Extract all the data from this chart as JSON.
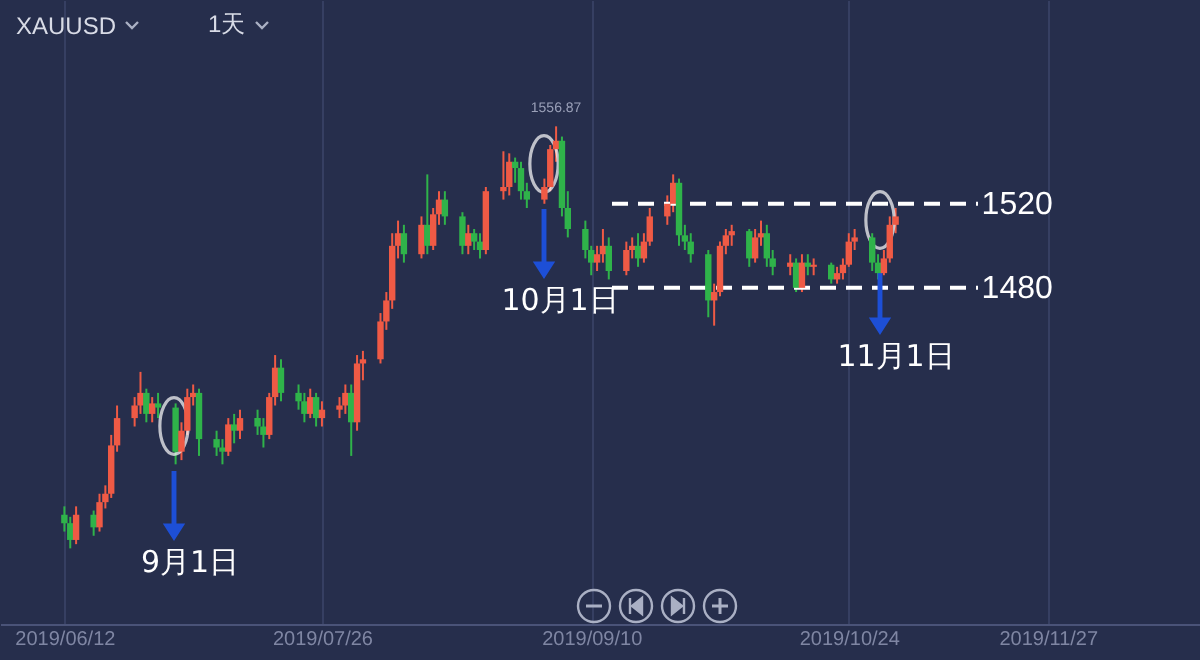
{
  "chart_data": {
    "type": "candlestick",
    "annotations": [
      "XAUUSD",
      "1天",
      "9月1日",
      "10月1日",
      "11月1日",
      {
        "text": "1556.87",
        "x": "2019-09-04",
        "y": 1556.87
      }
    ],
    "xlim": [
      "2019-06-01",
      "2019-12-23"
    ],
    "xticks": [
      {
        "value": "2019-06-12",
        "label": "2019/06/12"
      },
      {
        "value": "2019-07-26",
        "label": "2019/07/26"
      },
      {
        "value": "2019-09-10",
        "label": "2019/09/10"
      },
      {
        "value": "2019-10-24",
        "label": "2019/10/24"
      },
      {
        "value": "2019-11-27",
        "label": "2019/11/27"
      }
    ],
    "ylim": [
      1320,
      1617
    ],
    "tick_labels": "x",
    "grid": "x",
    "ref_lines": [
      {
        "axis": "y",
        "value": 1520,
        "label": "1520",
        "color": "#ffffff",
        "line_style": "dashed"
      },
      {
        "axis": "y",
        "value": 1480,
        "label": "1480",
        "color": "#ffffff",
        "line_style": "dashed"
      }
    ],
    "x": [
      "2019-06-12",
      "2019-06-13",
      "2019-06-14",
      "2019-06-17",
      "2019-06-18",
      "2019-06-19",
      "2019-06-20",
      "2019-06-21",
      "2019-06-24",
      "2019-06-25",
      "2019-06-26",
      "2019-06-27",
      "2019-06-28",
      "2019-07-01",
      "2019-07-02",
      "2019-07-03",
      "2019-07-04",
      "2019-07-05",
      "2019-07-08",
      "2019-07-09",
      "2019-07-10",
      "2019-07-11",
      "2019-07-12",
      "2019-07-15",
      "2019-07-16",
      "2019-07-17",
      "2019-07-18",
      "2019-07-19",
      "2019-07-22",
      "2019-07-23",
      "2019-07-24",
      "2019-07-25",
      "2019-07-26",
      "2019-07-29",
      "2019-07-30",
      "2019-07-31",
      "2019-08-01",
      "2019-08-02",
      "2019-08-05",
      "2019-08-06",
      "2019-08-07",
      "2019-08-08",
      "2019-08-09",
      "2019-08-12",
      "2019-08-13",
      "2019-08-14",
      "2019-08-15",
      "2019-08-16",
      "2019-08-19",
      "2019-08-20",
      "2019-08-21",
      "2019-08-22",
      "2019-08-23",
      "2019-08-26",
      "2019-08-27",
      "2019-08-28",
      "2019-08-29",
      "2019-08-30",
      "2019-09-02",
      "2019-09-03",
      "2019-09-04",
      "2019-09-05",
      "2019-09-06",
      "2019-09-09",
      "2019-09-10",
      "2019-09-11",
      "2019-09-12",
      "2019-09-13",
      "2019-09-16",
      "2019-09-17",
      "2019-09-18",
      "2019-09-19",
      "2019-09-20",
      "2019-09-23",
      "2019-09-24",
      "2019-09-25",
      "2019-09-26",
      "2019-09-27",
      "2019-09-30",
      "2019-10-01",
      "2019-10-02",
      "2019-10-03",
      "2019-10-04",
      "2019-10-07",
      "2019-10-08",
      "2019-10-09",
      "2019-10-10",
      "2019-10-11",
      "2019-10-14",
      "2019-10-15",
      "2019-10-16",
      "2019-10-17",
      "2019-10-18",
      "2019-10-21",
      "2019-10-22",
      "2019-10-23",
      "2019-10-24",
      "2019-10-25",
      "2019-10-28",
      "2019-10-29",
      "2019-10-30",
      "2019-10-31",
      "2019-11-01"
    ],
    "ohlc": [
      [
        1372,
        1376,
        1364,
        1368
      ],
      [
        1368,
        1371,
        1356,
        1360
      ],
      [
        1360,
        1376,
        1358,
        1372
      ],
      [
        1372,
        1374,
        1362,
        1366
      ],
      [
        1366,
        1382,
        1364,
        1378
      ],
      [
        1378,
        1386,
        1375,
        1382
      ],
      [
        1382,
        1410,
        1380,
        1405
      ],
      [
        1405,
        1424,
        1402,
        1418
      ],
      [
        1418,
        1428,
        1414,
        1424
      ],
      [
        1424,
        1440,
        1420,
        1430
      ],
      [
        1430,
        1432,
        1416,
        1420
      ],
      [
        1420,
        1428,
        1416,
        1425
      ],
      [
        1425,
        1430,
        1418,
        1423
      ],
      [
        1423,
        1425,
        1396,
        1402
      ],
      [
        1402,
        1416,
        1398,
        1412
      ],
      [
        1412,
        1432,
        1410,
        1428
      ],
      [
        1428,
        1434,
        1424,
        1430
      ],
      [
        1430,
        1432,
        1400,
        1408
      ],
      [
        1408,
        1412,
        1400,
        1404
      ],
      [
        1404,
        1408,
        1396,
        1402
      ],
      [
        1402,
        1418,
        1400,
        1415
      ],
      [
        1415,
        1420,
        1406,
        1412
      ],
      [
        1412,
        1422,
        1408,
        1418
      ],
      [
        1418,
        1422,
        1410,
        1414
      ],
      [
        1414,
        1418,
        1404,
        1410
      ],
      [
        1410,
        1430,
        1408,
        1428
      ],
      [
        1428,
        1448,
        1424,
        1442
      ],
      [
        1442,
        1446,
        1426,
        1430
      ],
      [
        1430,
        1434,
        1422,
        1426
      ],
      [
        1426,
        1430,
        1416,
        1420
      ],
      [
        1420,
        1432,
        1418,
        1428
      ],
      [
        1428,
        1430,
        1414,
        1418
      ],
      [
        1418,
        1426,
        1414,
        1422
      ],
      [
        1422,
        1428,
        1418,
        1424
      ],
      [
        1424,
        1434,
        1420,
        1430
      ],
      [
        1430,
        1434,
        1400,
        1416
      ],
      [
        1416,
        1448,
        1412,
        1444
      ],
      [
        1444,
        1450,
        1436,
        1446
      ],
      [
        1446,
        1468,
        1444,
        1464
      ],
      [
        1464,
        1478,
        1460,
        1474
      ],
      [
        1474,
        1506,
        1470,
        1500
      ],
      [
        1500,
        1512,
        1494,
        1506
      ],
      [
        1506,
        1510,
        1492,
        1496
      ],
      [
        1496,
        1514,
        1494,
        1510
      ],
      [
        1510,
        1534,
        1496,
        1500
      ],
      [
        1500,
        1518,
        1498,
        1515
      ],
      [
        1515,
        1526,
        1510,
        1522
      ],
      [
        1522,
        1526,
        1510,
        1514
      ],
      [
        1514,
        1516,
        1496,
        1500
      ],
      [
        1500,
        1510,
        1496,
        1506
      ],
      [
        1506,
        1508,
        1498,
        1502
      ],
      [
        1502,
        1506,
        1494,
        1498
      ],
      [
        1498,
        1528,
        1496,
        1526
      ],
      [
        1526,
        1545,
        1522,
        1528
      ],
      [
        1528,
        1544,
        1524,
        1540
      ],
      [
        1540,
        1542,
        1530,
        1537
      ],
      [
        1537,
        1540,
        1522,
        1526
      ],
      [
        1526,
        1530,
        1518,
        1522
      ],
      [
        1522,
        1532,
        1520,
        1528
      ],
      [
        1528,
        1548,
        1526,
        1546
      ],
      [
        1546,
        1556.87,
        1540,
        1550
      ],
      [
        1550,
        1552,
        1514,
        1518
      ],
      [
        1518,
        1526,
        1504,
        1508
      ],
      [
        1508,
        1512,
        1494,
        1498
      ],
      [
        1498,
        1500,
        1486,
        1492
      ],
      [
        1492,
        1500,
        1488,
        1496
      ],
      [
        1496,
        1508,
        1492,
        1500
      ],
      [
        1500,
        1504,
        1484,
        1488
      ],
      [
        1488,
        1502,
        1486,
        1498
      ],
      [
        1498,
        1504,
        1494,
        1500
      ],
      [
        1500,
        1506,
        1490,
        1494
      ],
      [
        1494,
        1506,
        1492,
        1502
      ],
      [
        1502,
        1518,
        1500,
        1514
      ],
      [
        1514,
        1524,
        1510,
        1520
      ],
      [
        1520,
        1534,
        1516,
        1530
      ],
      [
        1530,
        1532,
        1500,
        1505
      ],
      [
        1505,
        1510,
        1498,
        1502
      ],
      [
        1502,
        1506,
        1492,
        1496
      ],
      [
        1496,
        1498,
        1466,
        1474
      ],
      [
        1474,
        1482,
        1462,
        1478
      ],
      [
        1478,
        1502,
        1476,
        1500
      ],
      [
        1500,
        1508,
        1496,
        1505
      ],
      [
        1505,
        1510,
        1500,
        1507
      ],
      [
        1507,
        1508,
        1490,
        1494
      ],
      [
        1494,
        1508,
        1492,
        1504
      ],
      [
        1504,
        1512,
        1500,
        1506
      ],
      [
        1506,
        1510,
        1490,
        1494
      ],
      [
        1494,
        1498,
        1486,
        1490
      ],
      [
        1490,
        1496,
        1486,
        1492
      ],
      [
        1492,
        1494,
        1478,
        1480
      ],
      [
        1480,
        1496,
        1478,
        1492
      ],
      [
        1492,
        1496,
        1486,
        1490
      ],
      [
        1490,
        1494,
        1486,
        1491
      ],
      [
        1491,
        1492,
        1482,
        1484
      ],
      [
        1484,
        1490,
        1482,
        1487
      ],
      [
        1487,
        1494,
        1484,
        1491
      ],
      [
        1491,
        1506,
        1490,
        1502
      ],
      [
        1502,
        1508,
        1498,
        1504
      ],
      [
        1504,
        1506,
        1488,
        1492
      ],
      [
        1492,
        1496,
        1484,
        1487
      ],
      [
        1487,
        1498,
        1486,
        1494
      ],
      [
        1494,
        1514,
        1492,
        1510
      ],
      [
        1510,
        1518,
        1506,
        1514
      ]
    ]
  }
}
